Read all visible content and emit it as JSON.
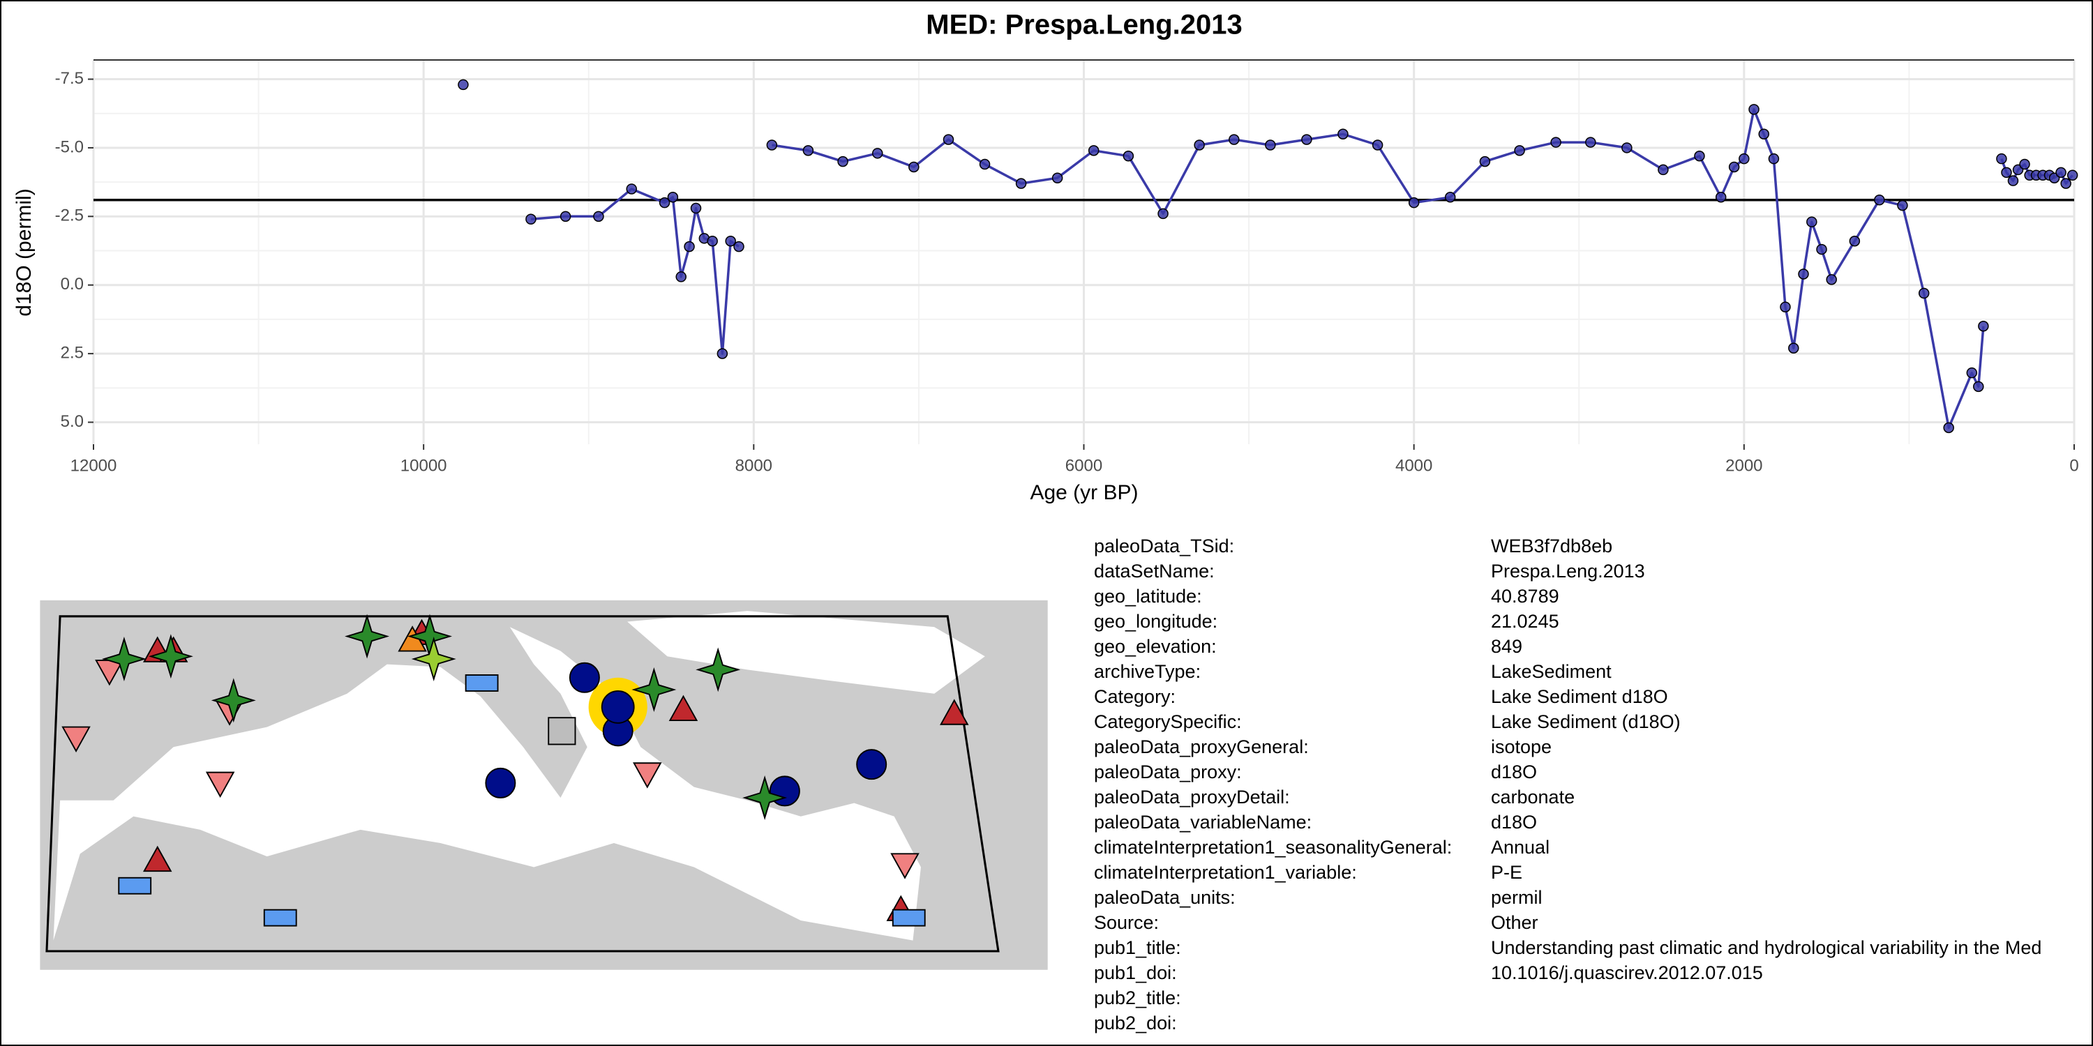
{
  "chart_data": {
    "type": "line",
    "title": "MED: Prespa.Leng.2013",
    "x_label": "Age (yr BP)",
    "y_label": "d18O (permil)",
    "color": "#3a3aa8",
    "grid": true,
    "xlim": [
      12000,
      0
    ],
    "xticks": [
      12000,
      10000,
      8000,
      6000,
      4000,
      2000,
      0
    ],
    "ylim": [
      5.8,
      -8.2
    ],
    "yticks": [
      {
        "value": -7.5,
        "label": "-7.5"
      },
      {
        "value": -5.0,
        "label": "-5.0"
      },
      -2.5,
      {
        "value": 0.0,
        "label": "0.0"
      },
      2.5,
      {
        "value": 5.0,
        "label": "5.0"
      }
    ],
    "hline": -3.1,
    "x": [
      9760,
      null,
      9350,
      9140,
      8940,
      8740,
      8540,
      8490,
      8440,
      8390,
      8350,
      8300,
      8250,
      8190,
      8140,
      8090,
      null,
      7890,
      7670,
      7460,
      7250,
      7030,
      6820,
      6600,
      6380,
      6160,
      5940,
      5730,
      5520,
      5300,
      5090,
      4870,
      4650,
      4430,
      4220,
      4000,
      3780,
      3570,
      3360,
      3140,
      2930,
      2710,
      2490,
      2270,
      2140,
      2060,
      2000,
      1940,
      1880,
      1820,
      1750,
      1700,
      1640,
      1590,
      1530,
      1470,
      1330,
      1180,
      1040,
      910,
      760,
      620,
      580,
      550,
      null,
      440,
      410,
      370,
      340,
      300,
      270,
      230,
      190,
      150,
      120,
      80,
      50,
      10
    ],
    "values": [
      -7.3,
      null,
      -2.4,
      -2.5,
      -2.5,
      -3.5,
      -3.0,
      -3.2,
      -0.3,
      -1.4,
      -2.8,
      -1.7,
      -1.6,
      2.5,
      -1.6,
      -1.4,
      null,
      -5.1,
      -4.9,
      -4.5,
      -4.8,
      -4.3,
      -5.3,
      -4.4,
      -3.7,
      -3.9,
      -4.9,
      -4.7,
      -2.6,
      -5.1,
      -5.3,
      -5.1,
      -5.3,
      -5.5,
      -5.1,
      -3.0,
      -3.2,
      -4.5,
      -4.9,
      -5.2,
      -5.2,
      -5.0,
      -4.2,
      -4.7,
      -3.2,
      -4.3,
      -4.6,
      -6.4,
      -5.5,
      -4.6,
      0.8,
      2.3,
      -0.4,
      -2.3,
      -1.3,
      -0.2,
      -1.6,
      -3.1,
      -2.9,
      0.3,
      5.2,
      3.2,
      3.7,
      1.5,
      null,
      -4.6,
      -4.1,
      -3.8,
      -4.2,
      -4.4,
      -4.0,
      -4.0,
      -4.0,
      -4.0,
      -3.9,
      -4.1,
      -3.7,
      -4.0
    ]
  },
  "metadata": [
    {
      "key": "paleoData_TSid:",
      "value": "WEB3f7db8eb"
    },
    {
      "key": "dataSetName:",
      "value": "Prespa.Leng.2013"
    },
    {
      "key": "geo_latitude:",
      "value": "40.8789"
    },
    {
      "key": "geo_longitude:",
      "value": "21.0245"
    },
    {
      "key": "geo_elevation:",
      "value": "849"
    },
    {
      "key": "archiveType:",
      "value": "LakeSediment"
    },
    {
      "key": "Category:",
      "value": "Lake Sediment d18O"
    },
    {
      "key": "CategorySpecific:",
      "value": "Lake Sediment (d18O)"
    },
    {
      "key": "paleoData_proxyGeneral:",
      "value": "isotope"
    },
    {
      "key": "paleoData_proxy:",
      "value": "d18O"
    },
    {
      "key": "paleoData_proxyDetail:",
      "value": "carbonate"
    },
    {
      "key": "paleoData_variableName:",
      "value": "d18O"
    },
    {
      "key": "climateInterpretation1_seasonalityGeneral:",
      "value": "Annual"
    },
    {
      "key": "climateInterpretation1_variable:",
      "value": "P-E"
    },
    {
      "key": "paleoData_units:",
      "value": "permil"
    },
    {
      "key": "Source:",
      "value": "Other"
    },
    {
      "key": "pub1_title:",
      "value": "Understanding past climatic and hydrological variability in the Med"
    },
    {
      "key": "pub1_doi:",
      "value": "10.1016/j.quascirev.2012.07.015"
    },
    {
      "key": "pub2_title:"
    },
    {
      "key": "pub2_doi:"
    }
  ]
}
